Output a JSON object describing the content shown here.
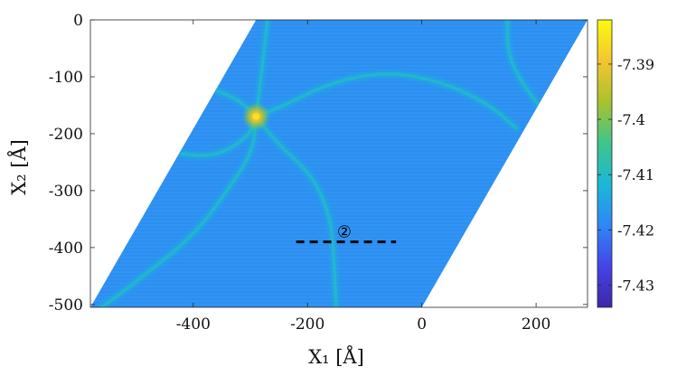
{
  "chart_data": {
    "type": "heatmap",
    "xlabel": "X₁ [Å]",
    "ylabel": "X₂ [Å]",
    "xlim": [
      -580,
      290
    ],
    "ylim": [
      -505,
      0
    ],
    "xticks": [
      -400,
      -200,
      0,
      200
    ],
    "yticks": [
      0,
      -100,
      -200,
      -300,
      -400,
      -500
    ],
    "grid": false,
    "domain_shape": "parallelogram",
    "domain_vertices": [
      [
        -580,
        -505
      ],
      [
        0,
        -505
      ],
      [
        290,
        0
      ],
      [
        -290,
        0
      ]
    ],
    "colorbar": {
      "position": "right",
      "range": [
        -7.434,
        -7.382
      ],
      "ticks": [
        -7.39,
        -7.4,
        -7.41,
        -7.42,
        -7.43
      ],
      "tick_labels": [
        "-7.39",
        "-7.4",
        "-7.41",
        "-7.42",
        "-7.43"
      ],
      "colormap": "parula",
      "colors": [
        "#3e26a8",
        "#4544e8",
        "#2e87f7",
        "#1bb8d6",
        "#3fc48c",
        "#a9c22e",
        "#f4c531",
        "#f9fb0e"
      ]
    },
    "background_value": -7.418,
    "hotspot": {
      "x": -290,
      "y": -170,
      "value": -7.385
    },
    "ridges": [
      {
        "value": -7.412,
        "points": [
          [
            -290,
            -170
          ],
          [
            -240,
            -150
          ],
          [
            -160,
            -110
          ],
          [
            -60,
            -90
          ],
          [
            40,
            -110
          ],
          [
            120,
            -150
          ],
          [
            165,
            -190
          ]
        ]
      },
      {
        "value": -7.412,
        "points": [
          [
            -290,
            -170
          ],
          [
            -250,
            -220
          ],
          [
            -195,
            -270
          ],
          [
            -165,
            -330
          ],
          [
            -155,
            -390
          ],
          [
            -150,
            -505
          ]
        ]
      },
      {
        "value": -7.412,
        "points": [
          [
            -290,
            -170
          ],
          [
            -295,
            -230
          ],
          [
            -340,
            -300
          ],
          [
            -400,
            -380
          ],
          [
            -500,
            -460
          ],
          [
            -560,
            -505
          ]
        ]
      },
      {
        "value": -7.412,
        "points": [
          [
            -290,
            -170
          ],
          [
            -320,
            -140
          ],
          [
            -370,
            -120
          ],
          [
            -400,
            -115
          ]
        ]
      },
      {
        "value": -7.412,
        "points": [
          [
            -290,
            -170
          ],
          [
            -300,
            -200
          ],
          [
            -340,
            -230
          ],
          [
            -380,
            -240
          ],
          [
            -420,
            -235
          ]
        ]
      },
      {
        "value": -7.412,
        "points": [
          [
            -290,
            -170
          ],
          [
            -280,
            -90
          ],
          [
            -275,
            -40
          ],
          [
            -270,
            0
          ]
        ]
      },
      {
        "value": -7.412,
        "points": [
          [
            150,
            0
          ],
          [
            150,
            -60
          ],
          [
            180,
            -120
          ],
          [
            230,
            -180
          ]
        ]
      }
    ],
    "annotations": [
      {
        "label": "②",
        "line_start": [
          -220,
          -390
        ],
        "line_end": [
          -45,
          -390
        ],
        "style": "dashed"
      }
    ]
  }
}
